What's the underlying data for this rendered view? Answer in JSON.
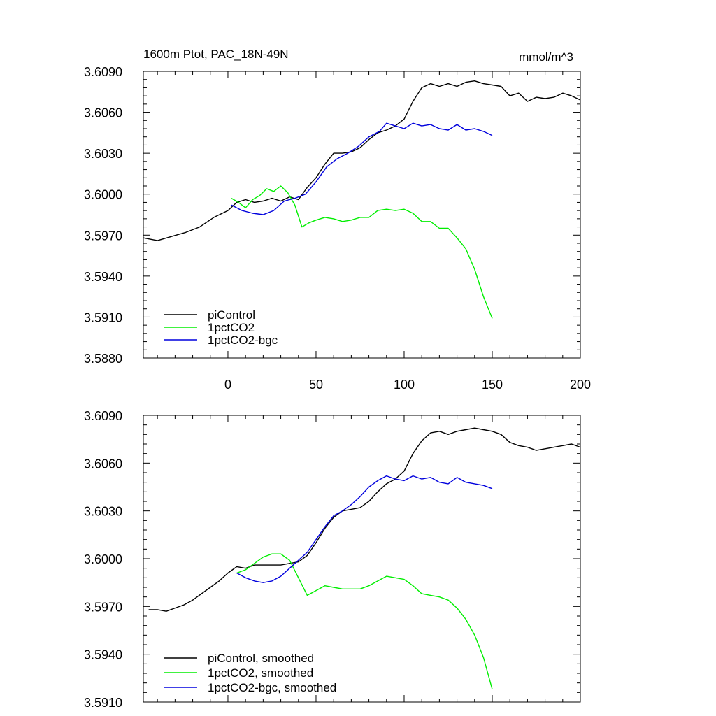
{
  "chart_data": [
    {
      "type": "line",
      "title_left": "1600m Ptot, PAC_18N-49N",
      "title_right": "mmol/m^3",
      "xlim": [
        -48,
        200
      ],
      "ylim": [
        3.588,
        3.609
      ],
      "x_ticks": [
        0,
        50,
        100,
        150,
        200
      ],
      "x_tick_labels": [
        "0",
        "50",
        "100",
        "150",
        "200"
      ],
      "y_ticks": [
        3.588,
        3.591,
        3.594,
        3.597,
        3.6,
        3.603,
        3.606,
        3.609
      ],
      "y_tick_labels": [
        "3.5880",
        "3.5910",
        "3.5940",
        "3.5970",
        "3.6000",
        "3.6030",
        "3.6060",
        "3.6090"
      ],
      "legend_position": "bottom-left",
      "series": [
        {
          "name": "piControl",
          "color": "#000000",
          "points": [
            [
              -48,
              3.5968
            ],
            [
              -40,
              3.5966
            ],
            [
              -32,
              3.5969
            ],
            [
              -24,
              3.5972
            ],
            [
              -16,
              3.5976
            ],
            [
              -8,
              3.5983
            ],
            [
              0,
              3.5988
            ],
            [
              5,
              3.5994
            ],
            [
              10,
              3.5996
            ],
            [
              15,
              3.5994
            ],
            [
              20,
              3.5995
            ],
            [
              25,
              3.5997
            ],
            [
              30,
              3.5995
            ],
            [
              35,
              3.5998
            ],
            [
              40,
              3.5996
            ],
            [
              45,
              3.6005
            ],
            [
              50,
              3.6012
            ],
            [
              55,
              3.6022
            ],
            [
              60,
              3.603
            ],
            [
              65,
              3.603
            ],
            [
              70,
              3.6031
            ],
            [
              75,
              3.6034
            ],
            [
              80,
              3.604
            ],
            [
              85,
              3.6045
            ],
            [
              90,
              3.6047
            ],
            [
              95,
              3.605
            ],
            [
              100,
              3.6055
            ],
            [
              105,
              3.6068
            ],
            [
              110,
              3.6078
            ],
            [
              115,
              3.6081
            ],
            [
              120,
              3.6079
            ],
            [
              125,
              3.6081
            ],
            [
              130,
              3.6079
            ],
            [
              135,
              3.6082
            ],
            [
              140,
              3.6083
            ],
            [
              145,
              3.6081
            ],
            [
              150,
              3.608
            ],
            [
              155,
              3.6079
            ],
            [
              160,
              3.6072
            ],
            [
              165,
              3.6074
            ],
            [
              170,
              3.6068
            ],
            [
              175,
              3.6071
            ],
            [
              180,
              3.607
            ],
            [
              185,
              3.6071
            ],
            [
              190,
              3.6074
            ],
            [
              195,
              3.6072
            ],
            [
              200,
              3.6069
            ]
          ]
        },
        {
          "name": "1pctCO2",
          "color": "#00ee00",
          "points": [
            [
              2,
              3.5997
            ],
            [
              6,
              3.5994
            ],
            [
              10,
              3.599
            ],
            [
              14,
              3.5996
            ],
            [
              18,
              3.5999
            ],
            [
              22,
              3.6004
            ],
            [
              26,
              3.6002
            ],
            [
              30,
              3.6006
            ],
            [
              34,
              3.6001
            ],
            [
              38,
              3.5992
            ],
            [
              42,
              3.5976
            ],
            [
              46,
              3.5979
            ],
            [
              50,
              3.5981
            ],
            [
              55,
              3.5983
            ],
            [
              60,
              3.5982
            ],
            [
              65,
              3.598
            ],
            [
              70,
              3.5981
            ],
            [
              75,
              3.5983
            ],
            [
              80,
              3.5983
            ],
            [
              85,
              3.5988
            ],
            [
              90,
              3.5989
            ],
            [
              95,
              3.5988
            ],
            [
              100,
              3.5989
            ],
            [
              105,
              3.5986
            ],
            [
              110,
              3.598
            ],
            [
              115,
              3.598
            ],
            [
              120,
              3.5975
            ],
            [
              125,
              3.5975
            ],
            [
              130,
              3.5968
            ],
            [
              135,
              3.596
            ],
            [
              140,
              3.5945
            ],
            [
              145,
              3.5925
            ],
            [
              150,
              3.5909
            ]
          ]
        },
        {
          "name": "1pctCO2-bgc",
          "color": "#0000dd",
          "points": [
            [
              2,
              3.5992
            ],
            [
              8,
              3.5988
            ],
            [
              14,
              3.5986
            ],
            [
              20,
              3.5985
            ],
            [
              26,
              3.5988
            ],
            [
              32,
              3.5995
            ],
            [
              38,
              3.5997
            ],
            [
              44,
              3.6
            ],
            [
              50,
              3.6009
            ],
            [
              56,
              3.602
            ],
            [
              62,
              3.6026
            ],
            [
              68,
              3.603
            ],
            [
              74,
              3.6035
            ],
            [
              80,
              3.6042
            ],
            [
              86,
              3.6046
            ],
            [
              90,
              3.6052
            ],
            [
              95,
              3.605
            ],
            [
              100,
              3.6048
            ],
            [
              105,
              3.6052
            ],
            [
              110,
              3.605
            ],
            [
              115,
              3.6051
            ],
            [
              120,
              3.6048
            ],
            [
              125,
              3.6047
            ],
            [
              130,
              3.6051
            ],
            [
              135,
              3.6047
            ],
            [
              140,
              3.6048
            ],
            [
              145,
              3.6046
            ],
            [
              150,
              3.6043
            ]
          ]
        }
      ],
      "legend": [
        "piControl",
        "1pctCO2",
        "1pctCO2-bgc"
      ]
    },
    {
      "type": "line",
      "xlim": [
        -48,
        200
      ],
      "ylim": [
        3.591,
        3.609
      ],
      "x_ticks": [
        0,
        50,
        100,
        150,
        200
      ],
      "y_ticks": [
        3.591,
        3.594,
        3.597,
        3.6,
        3.603,
        3.606,
        3.609
      ],
      "y_tick_labels": [
        "3.5910",
        "3.5940",
        "3.5970",
        "3.6000",
        "3.6030",
        "3.6060",
        "3.6090"
      ],
      "legend_position": "bottom-left",
      "series": [
        {
          "name": "piControl, smoothed",
          "color": "#000000",
          "points": [
            [
              -45,
              3.5968
            ],
            [
              -40,
              3.5968
            ],
            [
              -35,
              3.5967
            ],
            [
              -30,
              3.5969
            ],
            [
              -25,
              3.5971
            ],
            [
              -20,
              3.5974
            ],
            [
              -15,
              3.5978
            ],
            [
              -10,
              3.5982
            ],
            [
              -5,
              3.5986
            ],
            [
              0,
              3.5991
            ],
            [
              5,
              3.5995
            ],
            [
              10,
              3.5994
            ],
            [
              15,
              3.5996
            ],
            [
              20,
              3.5996
            ],
            [
              25,
              3.5996
            ],
            [
              30,
              3.5996
            ],
            [
              35,
              3.5997
            ],
            [
              40,
              3.5998
            ],
            [
              45,
              3.6002
            ],
            [
              50,
              3.601
            ],
            [
              55,
              3.6019
            ],
            [
              60,
              3.6026
            ],
            [
              65,
              3.603
            ],
            [
              70,
              3.6031
            ],
            [
              75,
              3.6032
            ],
            [
              80,
              3.6036
            ],
            [
              85,
              3.6042
            ],
            [
              90,
              3.6047
            ],
            [
              95,
              3.605
            ],
            [
              100,
              3.6055
            ],
            [
              105,
              3.6066
            ],
            [
              110,
              3.6074
            ],
            [
              115,
              3.6079
            ],
            [
              120,
              3.608
            ],
            [
              125,
              3.6078
            ],
            [
              130,
              3.608
            ],
            [
              135,
              3.6081
            ],
            [
              140,
              3.6082
            ],
            [
              145,
              3.6081
            ],
            [
              150,
              3.608
            ],
            [
              155,
              3.6078
            ],
            [
              160,
              3.6073
            ],
            [
              165,
              3.6071
            ],
            [
              170,
              3.607
            ],
            [
              175,
              3.6068
            ],
            [
              180,
              3.6069
            ],
            [
              185,
              3.607
            ],
            [
              190,
              3.6071
            ],
            [
              195,
              3.6072
            ],
            [
              200,
              3.607
            ]
          ]
        },
        {
          "name": "1pctCO2, smoothed",
          "color": "#00ee00",
          "points": [
            [
              5,
              3.5991
            ],
            [
              10,
              3.5993
            ],
            [
              15,
              3.5997
            ],
            [
              20,
              3.6001
            ],
            [
              25,
              3.6003
            ],
            [
              30,
              3.6003
            ],
            [
              35,
              3.5999
            ],
            [
              40,
              3.5988
            ],
            [
              45,
              3.5977
            ],
            [
              50,
              3.598
            ],
            [
              55,
              3.5983
            ],
            [
              60,
              3.5982
            ],
            [
              65,
              3.5981
            ],
            [
              70,
              3.5981
            ],
            [
              75,
              3.5981
            ],
            [
              80,
              3.5983
            ],
            [
              85,
              3.5986
            ],
            [
              90,
              3.5989
            ],
            [
              95,
              3.5988
            ],
            [
              100,
              3.5987
            ],
            [
              105,
              3.5983
            ],
            [
              110,
              3.5978
            ],
            [
              115,
              3.5977
            ],
            [
              120,
              3.5976
            ],
            [
              125,
              3.5974
            ],
            [
              130,
              3.5969
            ],
            [
              135,
              3.5962
            ],
            [
              140,
              3.5952
            ],
            [
              145,
              3.5938
            ],
            [
              150,
              3.5918
            ]
          ]
        },
        {
          "name": "1pctCO2-bgc, smoothed",
          "color": "#0000dd",
          "points": [
            [
              5,
              3.5991
            ],
            [
              10,
              3.5988
            ],
            [
              15,
              3.5986
            ],
            [
              20,
              3.5985
            ],
            [
              25,
              3.5986
            ],
            [
              30,
              3.5989
            ],
            [
              35,
              3.5994
            ],
            [
              40,
              3.5999
            ],
            [
              45,
              3.6004
            ],
            [
              50,
              3.6012
            ],
            [
              55,
              3.602
            ],
            [
              60,
              3.6027
            ],
            [
              65,
              3.603
            ],
            [
              70,
              3.6034
            ],
            [
              75,
              3.6039
            ],
            [
              80,
              3.6045
            ],
            [
              85,
              3.6049
            ],
            [
              90,
              3.6052
            ],
            [
              95,
              3.605
            ],
            [
              100,
              3.6049
            ],
            [
              105,
              3.6052
            ],
            [
              110,
              3.605
            ],
            [
              115,
              3.6051
            ],
            [
              120,
              3.6048
            ],
            [
              125,
              3.6047
            ],
            [
              130,
              3.6051
            ],
            [
              135,
              3.6048
            ],
            [
              140,
              3.6047
            ],
            [
              145,
              3.6046
            ],
            [
              150,
              3.6044
            ]
          ]
        }
      ],
      "legend": [
        "piControl, smoothed",
        "1pctCO2, smoothed",
        "1pctCO2-bgc, smoothed"
      ]
    }
  ]
}
